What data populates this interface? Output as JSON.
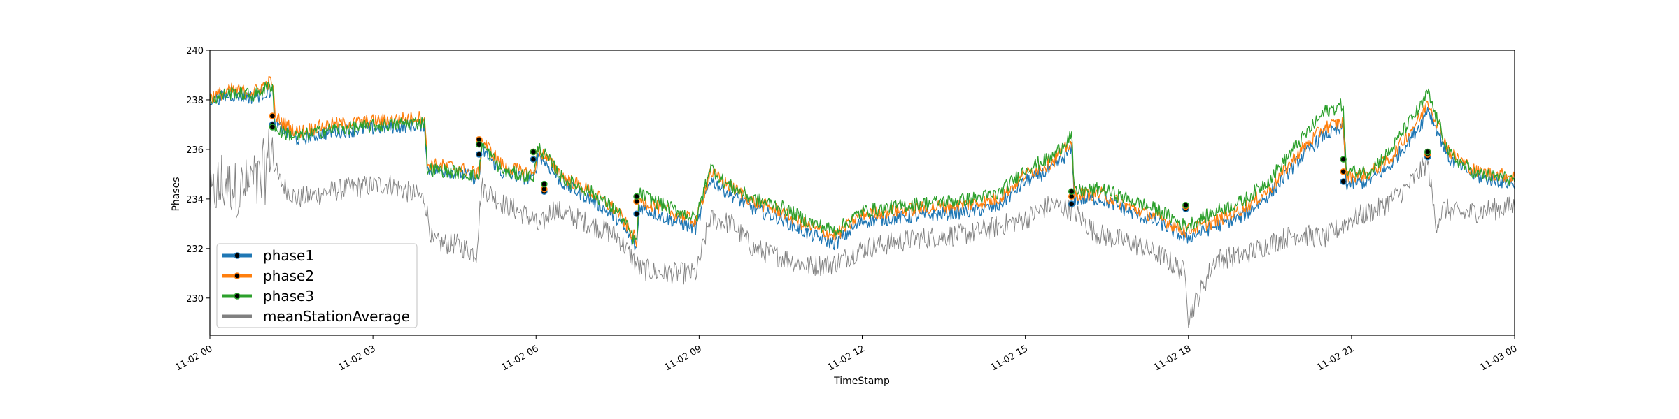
{
  "chart_data": {
    "type": "line",
    "title": "",
    "xlabel": "TimeStamp",
    "ylabel": "Phases",
    "x_ticks": [
      "11-02 00",
      "11-02 03",
      "11-02 06",
      "11-02 09",
      "11-02 12",
      "11-02 15",
      "11-02 18",
      "11-02 21",
      "11-03 00"
    ],
    "xlim_hours": [
      0,
      24
    ],
    "y_ticks": [
      230,
      232,
      234,
      236,
      238,
      240
    ],
    "ylim": [
      228.5,
      240
    ],
    "legend_position": "lower-left",
    "grid": false,
    "series": [
      {
        "name": "phase1",
        "color": "#1f77b4",
        "noise": 0.28,
        "offset": -0.15,
        "x_hours": [
          0,
          0.4,
          0.8,
          1.15,
          1.2,
          1.6,
          2.2,
          2.8,
          3.3,
          3.95,
          4.0,
          4.5,
          4.95,
          5.0,
          5.4,
          5.95,
          6.05,
          6.5,
          7.0,
          7.5,
          7.85,
          7.9,
          8.3,
          8.95,
          9.2,
          9.5,
          10.0,
          10.5,
          11.0,
          11.5,
          12.0,
          13.0,
          14.0,
          14.5,
          15.0,
          15.5,
          15.85,
          15.9,
          16.4,
          17.0,
          17.5,
          17.95,
          18.5,
          19.0,
          19.5,
          20.0,
          20.5,
          20.85,
          20.9,
          21.3,
          21.7,
          22.0,
          22.3,
          22.4,
          22.8,
          23.3,
          24.0
        ],
        "y_values": [
          238.0,
          238.2,
          238.1,
          238.4,
          237.0,
          236.4,
          236.7,
          236.8,
          236.9,
          237.0,
          235.2,
          235.1,
          234.8,
          236.0,
          235.0,
          234.8,
          235.8,
          234.6,
          234.0,
          233.2,
          232.0,
          233.7,
          233.3,
          232.8,
          234.8,
          234.3,
          233.6,
          233.2,
          232.6,
          232.2,
          233.1,
          233.3,
          233.5,
          233.7,
          234.7,
          235.2,
          236.0,
          234.0,
          234.0,
          233.4,
          233.0,
          232.4,
          232.9,
          233.3,
          234.2,
          235.5,
          236.6,
          236.8,
          234.6,
          234.7,
          235.3,
          236.2,
          237.1,
          237.7,
          235.6,
          234.9,
          234.6
        ]
      },
      {
        "name": "phase2",
        "color": "#ff7f0e",
        "noise": 0.28,
        "offset": 0.05,
        "x_hours": [
          0,
          0.4,
          0.8,
          1.15,
          1.2,
          1.6,
          2.2,
          2.8,
          3.3,
          3.95,
          4.0,
          4.5,
          4.95,
          5.0,
          5.4,
          5.95,
          6.05,
          6.5,
          7.0,
          7.5,
          7.85,
          7.9,
          8.3,
          8.95,
          9.2,
          9.5,
          10.0,
          10.5,
          11.0,
          11.5,
          12.0,
          13.0,
          14.0,
          14.5,
          15.0,
          15.5,
          15.85,
          15.9,
          16.4,
          17.0,
          17.5,
          17.95,
          18.5,
          19.0,
          19.5,
          20.0,
          20.5,
          20.85,
          20.9,
          21.3,
          21.7,
          22.0,
          22.3,
          22.4,
          22.8,
          23.3,
          24.0
        ],
        "y_values": [
          238.1,
          238.4,
          238.3,
          238.8,
          237.3,
          236.7,
          237.0,
          237.1,
          237.2,
          237.3,
          235.4,
          235.3,
          235.0,
          236.4,
          235.3,
          235.0,
          236.0,
          234.9,
          234.3,
          233.5,
          232.3,
          234.0,
          233.6,
          233.1,
          235.1,
          234.6,
          233.9,
          233.5,
          232.9,
          232.5,
          233.4,
          233.6,
          233.8,
          234.0,
          235.0,
          235.5,
          236.3,
          234.2,
          234.2,
          233.6,
          233.2,
          232.7,
          233.1,
          233.6,
          234.4,
          235.8,
          236.9,
          237.1,
          234.9,
          235.0,
          235.6,
          236.5,
          237.4,
          238.0,
          235.9,
          235.1,
          234.9
        ]
      },
      {
        "name": "phase3",
        "color": "#2ca02c",
        "noise": 0.28,
        "offset": 0.1,
        "x_hours": [
          0,
          0.4,
          0.8,
          1.15,
          1.2,
          1.6,
          2.2,
          2.8,
          3.3,
          3.95,
          4.0,
          4.5,
          4.95,
          5.0,
          5.4,
          5.95,
          6.05,
          6.5,
          7.0,
          7.5,
          7.85,
          7.9,
          8.3,
          8.95,
          9.2,
          9.5,
          10.0,
          10.5,
          11.0,
          11.5,
          12.0,
          13.0,
          14.0,
          14.5,
          15.0,
          15.5,
          15.85,
          15.9,
          16.4,
          17.0,
          17.5,
          17.95,
          18.5,
          19.0,
          19.5,
          20.0,
          20.5,
          20.85,
          20.9,
          21.3,
          21.7,
          22.0,
          22.3,
          22.4,
          22.8,
          23.3,
          24.0
        ],
        "y_values": [
          238.0,
          238.3,
          238.2,
          238.6,
          236.8,
          236.5,
          236.8,
          236.9,
          237.0,
          237.1,
          235.2,
          235.1,
          234.9,
          236.2,
          235.1,
          234.9,
          236.1,
          234.8,
          234.3,
          233.5,
          232.2,
          234.2,
          233.8,
          233.2,
          235.3,
          234.6,
          234.0,
          233.7,
          233.1,
          232.7,
          233.5,
          233.8,
          234.0,
          234.2,
          235.2,
          235.7,
          236.6,
          234.3,
          234.4,
          233.9,
          233.5,
          232.9,
          233.5,
          233.9,
          234.8,
          236.2,
          237.5,
          237.8,
          235.1,
          235.1,
          235.9,
          236.9,
          237.8,
          238.3,
          235.8,
          235.0,
          234.8
        ]
      },
      {
        "name": "meanStationAverage",
        "color": "#808080",
        "noise": 0.45,
        "offset": 0,
        "x_hours": [
          0,
          0.2,
          0.6,
          1.0,
          1.15,
          1.25,
          1.6,
          2.2,
          2.8,
          3.3,
          3.95,
          4.1,
          4.5,
          4.9,
          5.0,
          5.4,
          5.95,
          6.05,
          6.3,
          7.0,
          7.5,
          7.9,
          8.3,
          8.95,
          9.2,
          9.6,
          10.0,
          10.6,
          11.0,
          11.5,
          12.0,
          13.0,
          14.0,
          15.0,
          15.5,
          15.9,
          16.3,
          17.0,
          17.5,
          17.95,
          18.0,
          18.5,
          19.0,
          19.5,
          20.0,
          20.5,
          21.0,
          21.5,
          22.0,
          22.4,
          22.55,
          22.7,
          23.0,
          24.0
        ],
        "y_values": [
          233.8,
          234.5,
          234.4,
          235.0,
          236.2,
          234.8,
          234.0,
          234.3,
          234.5,
          234.6,
          234.0,
          232.2,
          232.2,
          231.8,
          234.5,
          233.8,
          233.2,
          232.8,
          233.6,
          233.0,
          232.5,
          231.2,
          231.0,
          231.0,
          233.2,
          233.0,
          232.0,
          231.6,
          231.3,
          231.4,
          232.0,
          232.4,
          232.6,
          233.2,
          233.8,
          233.5,
          232.6,
          232.2,
          231.7,
          231.0,
          229.2,
          231.6,
          231.7,
          232.2,
          232.6,
          232.4,
          233.2,
          233.6,
          234.4,
          235.5,
          233.0,
          233.6,
          233.4,
          233.7
        ]
      }
    ],
    "markers": [
      {
        "series": "phase1",
        "x_hours": 1.15,
        "y": 237.0
      },
      {
        "series": "phase2",
        "x_hours": 1.15,
        "y": 237.35
      },
      {
        "series": "phase3",
        "x_hours": 1.15,
        "y": 236.9
      },
      {
        "series": "phase1",
        "x_hours": 4.95,
        "y": 235.8
      },
      {
        "series": "phase2",
        "x_hours": 4.95,
        "y": 236.4
      },
      {
        "series": "phase3",
        "x_hours": 4.95,
        "y": 236.2
      },
      {
        "series": "phase1",
        "x_hours": 5.95,
        "y": 235.6
      },
      {
        "series": "phase2",
        "x_hours": 5.95,
        "y": 235.9
      },
      {
        "series": "phase3",
        "x_hours": 5.95,
        "y": 235.9
      },
      {
        "series": "phase1",
        "x_hours": 6.15,
        "y": 234.3
      },
      {
        "series": "phase2",
        "x_hours": 6.15,
        "y": 234.4
      },
      {
        "series": "phase3",
        "x_hours": 6.15,
        "y": 234.6
      },
      {
        "series": "phase1",
        "x_hours": 7.85,
        "y": 233.4
      },
      {
        "series": "phase2",
        "x_hours": 7.85,
        "y": 233.9
      },
      {
        "series": "phase3",
        "x_hours": 7.85,
        "y": 234.1
      },
      {
        "series": "phase1",
        "x_hours": 15.85,
        "y": 233.8
      },
      {
        "series": "phase2",
        "x_hours": 15.85,
        "y": 234.1
      },
      {
        "series": "phase3",
        "x_hours": 15.85,
        "y": 234.3
      },
      {
        "series": "phase1",
        "x_hours": 17.95,
        "y": 233.6
      },
      {
        "series": "phase2",
        "x_hours": 17.95,
        "y": 233.7
      },
      {
        "series": "phase3",
        "x_hours": 17.95,
        "y": 233.75
      },
      {
        "series": "phase1",
        "x_hours": 20.85,
        "y": 234.7
      },
      {
        "series": "phase2",
        "x_hours": 20.85,
        "y": 235.1
      },
      {
        "series": "phase3",
        "x_hours": 20.85,
        "y": 235.6
      },
      {
        "series": "phase1",
        "x_hours": 22.4,
        "y": 235.7
      },
      {
        "series": "phase2",
        "x_hours": 22.4,
        "y": 235.8
      },
      {
        "series": "phase3",
        "x_hours": 22.4,
        "y": 235.9
      }
    ]
  }
}
